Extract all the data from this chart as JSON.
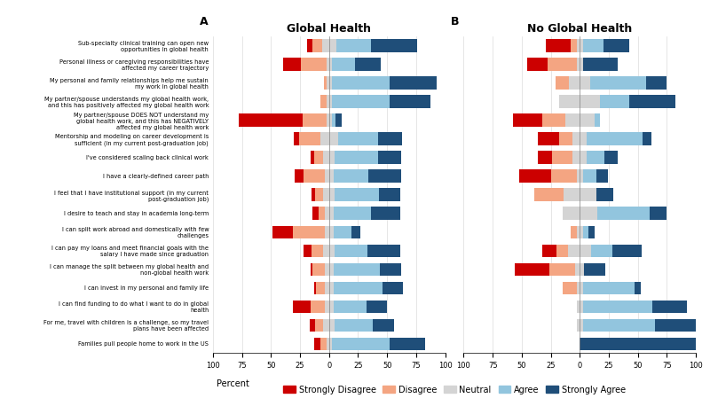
{
  "categories": [
    "Sub-specialty clinical training can open new\nopportunities in global health",
    "Personal illness or caregiving responsibilities have\naffected my career trajectory",
    "My personal and family relationships help me sustain\nmy work in global health",
    "My partner/spouse understands my global health work,\nand this has positively affected my global health work",
    "My partner/spouse DOES NOT understand my\nglobal health work, and this has NEGATIVELY\naffected my global health work",
    "Mentorship and modeling on career development is\nsufficient (in my current post-graduation job)",
    "I've considered scaling back clinical work",
    "I have a clearly-defined career path",
    "I feel that I have institutional support (in my current\npost-graduation job)",
    "I desire to teach and stay in academia long-term",
    "I can split work abroad and domestically with few\nchallenges",
    "I can pay my loans and meet financial goals with the\nsalary I have made since graduation",
    "I can manage the split between my global health and\nnon-global health work",
    "I can invest in my personal and family life",
    "I can find funding to do what I want to do in global\nhealth",
    "For me, travel with children is a challenge, so my travel\nplans have been affected",
    "Families pull people home to work in the US"
  ],
  "colors": {
    "strongly_disagree": "#cc0000",
    "disagree": "#f4a582",
    "neutral": "#d4d4d4",
    "agree": "#92c5de",
    "strongly_agree": "#1f4e79"
  },
  "global_health": {
    "strongly_disagree": [
      5,
      15,
      0,
      0,
      55,
      5,
      3,
      8,
      3,
      5,
      18,
      7,
      2,
      2,
      15,
      5,
      5
    ],
    "disagree": [
      8,
      22,
      2,
      5,
      20,
      18,
      8,
      18,
      7,
      5,
      27,
      10,
      10,
      7,
      12,
      7,
      5
    ],
    "neutral": [
      12,
      5,
      5,
      5,
      5,
      15,
      10,
      8,
      10,
      8,
      8,
      10,
      8,
      8,
      8,
      10,
      5
    ],
    "agree": [
      30,
      20,
      50,
      50,
      3,
      35,
      37,
      30,
      38,
      32,
      15,
      28,
      40,
      42,
      28,
      33,
      50
    ],
    "strongly_agree": [
      40,
      22,
      40,
      35,
      5,
      20,
      20,
      28,
      18,
      25,
      8,
      28,
      18,
      18,
      18,
      18,
      30
    ]
  },
  "no_global_health": {
    "strongly_disagree": [
      22,
      18,
      0,
      0,
      25,
      18,
      12,
      28,
      0,
      0,
      0,
      12,
      30,
      0,
      0,
      0,
      0
    ],
    "disagree": [
      5,
      25,
      12,
      0,
      20,
      12,
      18,
      22,
      25,
      0,
      5,
      10,
      22,
      12,
      0,
      0,
      0
    ],
    "neutral": [
      5,
      5,
      18,
      35,
      25,
      12,
      12,
      5,
      28,
      30,
      5,
      20,
      8,
      5,
      5,
      5,
      0
    ],
    "agree": [
      18,
      0,
      48,
      25,
      5,
      48,
      15,
      12,
      0,
      45,
      5,
      18,
      0,
      45,
      60,
      62,
      0
    ],
    "strongly_agree": [
      22,
      30,
      18,
      40,
      0,
      8,
      12,
      10,
      15,
      15,
      5,
      25,
      18,
      5,
      30,
      38,
      100
    ]
  },
  "title_a": "Global Health",
  "title_b": "No Global Health",
  "label_a": "A",
  "label_b": "B",
  "xlim": [
    -100,
    100
  ],
  "xticks": [
    -100,
    -75,
    -50,
    -25,
    0,
    25,
    50,
    75,
    100
  ],
  "legend_labels": [
    "Strongly Disagree",
    "Disagree",
    "Neutral",
    "Agree",
    "Strongly Agree"
  ],
  "legend_title": "Percent"
}
